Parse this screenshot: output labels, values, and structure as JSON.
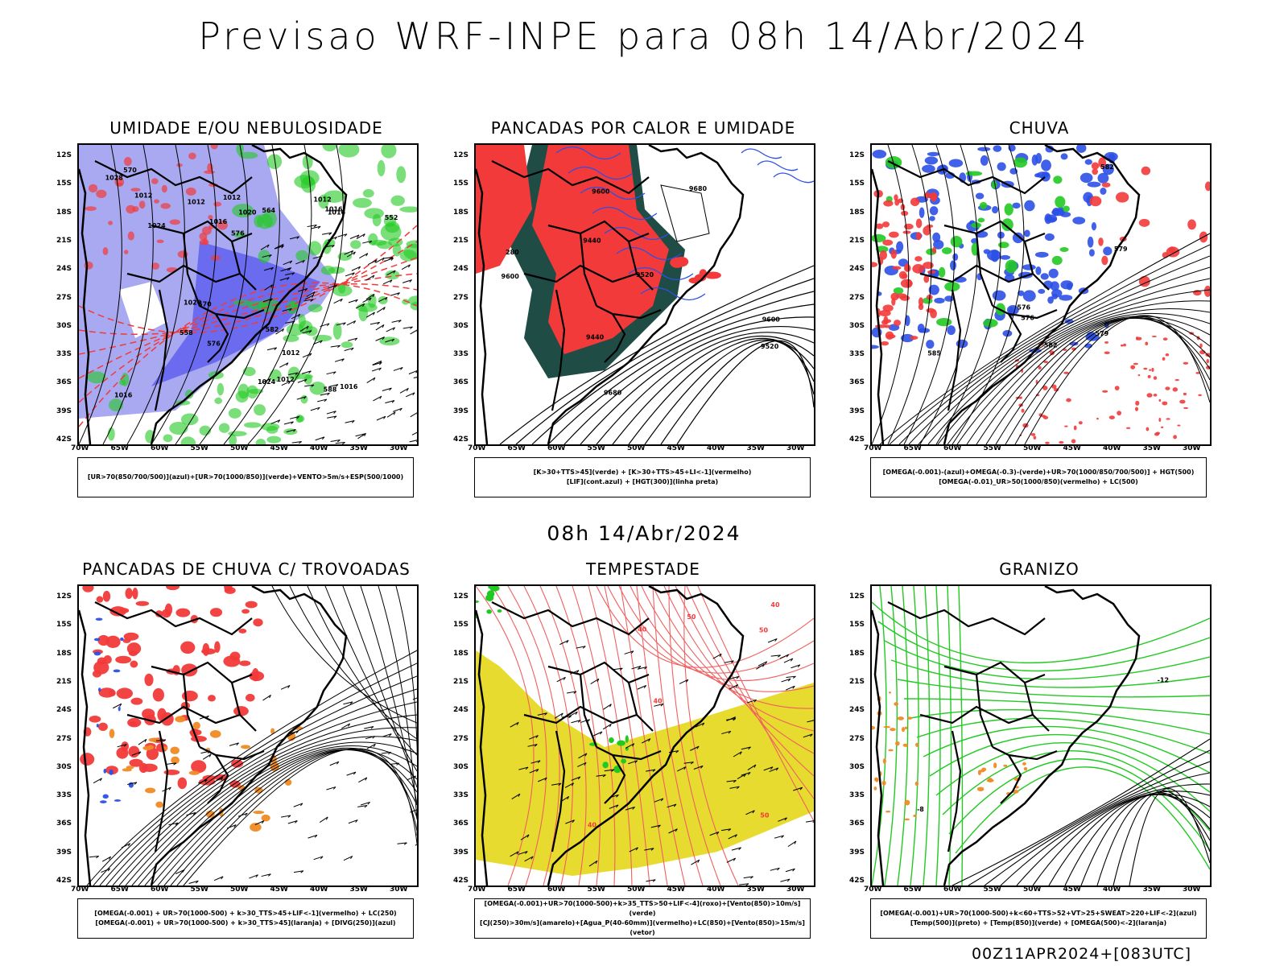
{
  "title": "Previsao WRF-INPE  para 08h 14/Abr/2024",
  "mid_title": "08h 14/Abr/2024",
  "footer": "00Z11APR2024+[083UTC]",
  "lat_labels": [
    "12S",
    "15S",
    "18S",
    "21S",
    "24S",
    "27S",
    "30S",
    "33S",
    "36S",
    "39S",
    "42S"
  ],
  "lon_labels": [
    "70W",
    "65W",
    "60W",
    "55W",
    "50W",
    "45W",
    "40W",
    "35W",
    "30W"
  ],
  "panels": [
    {
      "title": "UMIDADE E/OU NEBULOSIDADE",
      "legend": [
        "[UR>70(850/700/500)](azul)+[UR>70(1000/850)](verde)+VENTO>5m/s+ESP(500/1000)"
      ],
      "contour_labels": [
        "1012",
        "1012",
        "1016",
        "1016",
        "1012",
        "1012",
        "1016",
        "1020",
        "1024",
        "1028",
        "1016",
        "1020",
        "1024",
        "570",
        "576",
        "564",
        "582",
        "588",
        "552",
        "558",
        "570",
        "576",
        "1012",
        "1016",
        "1012"
      ]
    },
    {
      "title": "PANCADAS POR CALOR E UMIDADE",
      "legend": [
        "[K>30+TTS>45](verde) + [K>30+TTS>45+LI<-1](vermelho)",
        "[LIF](cont.azul) + [HGT(300)](linha preta)"
      ],
      "contour_labels": [
        "9680",
        "9600",
        "9520",
        "9440",
        "9600",
        "9520",
        "9440",
        "9600",
        "9680",
        "280"
      ]
    },
    {
      "title": "CHUVA",
      "legend": [
        "[OMEGA(-0.001)-(azul)+OMEGA(-0.3)-(verde)+UR>70(1000/850/700/500)] + HGT(500)",
        "[OMEGA(-0.01)_UR>50(1000/850)(vermelho) + LC(500)"
      ],
      "contour_labels": [
        "585",
        "582",
        "579",
        "576",
        "582",
        "579",
        "576"
      ]
    },
    {
      "title": "PANCADAS DE CHUVA C/ TROVOADAS",
      "legend": [
        "[OMEGA(-0.001) + UR>70(1000-500) + k>30_TTS>45+LIF<-1](vermelho) + LC(250)",
        "[OMEGA(-0.001) + UR>70(1000-500) + k>30_TTS>45](laranja) + [DIVG(250)](azul)"
      ],
      "contour_labels": []
    },
    {
      "title": "TEMPESTADE",
      "legend": [
        "[OMEGA(-0.001)+UR>70(1000-500)+k>35_TTS>50+LIF<-4](roxo)+[Vento(850)>10m/s](verde)",
        "[CJ(250)>30m/s](amarelo)+[Agua_P(40-60mm)](vermelho)+LC(850)+[Vento(850)>15m/s](vetor)"
      ],
      "contour_labels": [
        "40",
        "50",
        "40",
        "50",
        "40",
        "50",
        "40"
      ]
    },
    {
      "title": "GRANIZO",
      "legend": [
        "[OMEGA(-0.001)+UR>70(1000-500)+k<60+TTS>52+VT>25+SWEAT>220+LIF<-2](azul)",
        "[Temp(500)](preto) + [Temp(850)](verde) + [OMEGA(500)<-2](laranja)"
      ],
      "contour_labels": [
        "-12",
        "-8"
      ]
    }
  ],
  "colors": {
    "red": "#f23a3a",
    "blue": "#2b50e6",
    "green": "#22c922",
    "lightblue": "#a9a9f2",
    "purple": "#6b6bf0",
    "darkgreen": "#1f4d46",
    "yellow": "#e6db2e",
    "orange": "#f08a24",
    "salmon": "#f06060"
  }
}
